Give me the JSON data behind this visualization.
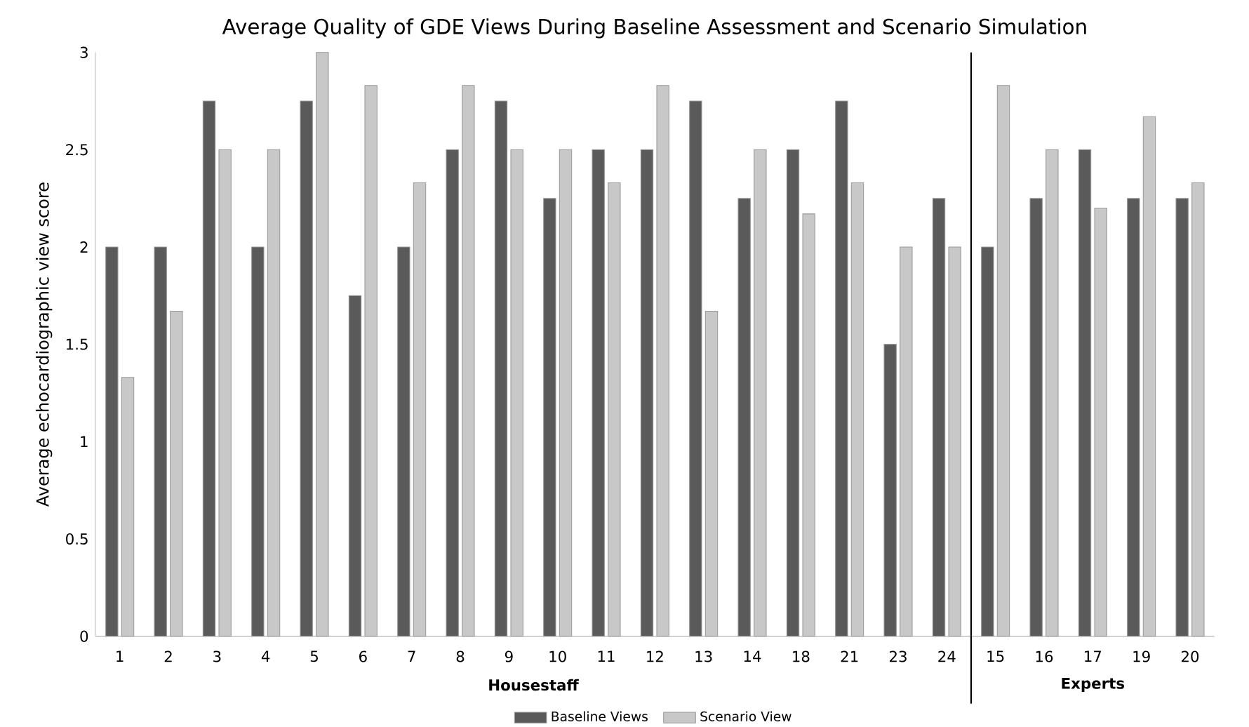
{
  "chart_data": {
    "type": "bar",
    "title": "Average Quality of GDE Views During Baseline Assessment and Scenario Simulation",
    "ylabel": "Average echocardiographic view score",
    "categories": [
      "1",
      "2",
      "3",
      "4",
      "5",
      "6",
      "7",
      "8",
      "9",
      "10",
      "11",
      "12",
      "13",
      "14",
      "18",
      "21",
      "23",
      "24",
      "15",
      "16",
      "17",
      "19",
      "20"
    ],
    "series": [
      {
        "name": "Baseline Views",
        "color": "#5a5a5a",
        "values": [
          2,
          2,
          2.75,
          2,
          2.75,
          1.75,
          2,
          2.5,
          2.75,
          2.25,
          2.5,
          2.5,
          2.75,
          2.25,
          2.5,
          2.75,
          1.5,
          2.25,
          2,
          2.25,
          2.5,
          2.25,
          2.25
        ]
      },
      {
        "name": "Scenario View",
        "color": "#c8c8c8",
        "values": [
          1.33,
          1.67,
          2.5,
          2.5,
          3,
          2.83,
          2.33,
          2.83,
          2.5,
          2.5,
          2.33,
          2.83,
          1.67,
          2.5,
          2.17,
          2.33,
          2,
          2,
          2.83,
          2.5,
          2.2,
          2.67,
          2.33
        ]
      }
    ],
    "ylim": [
      0,
      3
    ],
    "yticks": [
      0,
      0.5,
      1,
      1.5,
      2,
      2.5,
      3
    ],
    "grid": false,
    "legend": "bottom",
    "annotations": [
      "Housestaff",
      "Experts"
    ]
  }
}
